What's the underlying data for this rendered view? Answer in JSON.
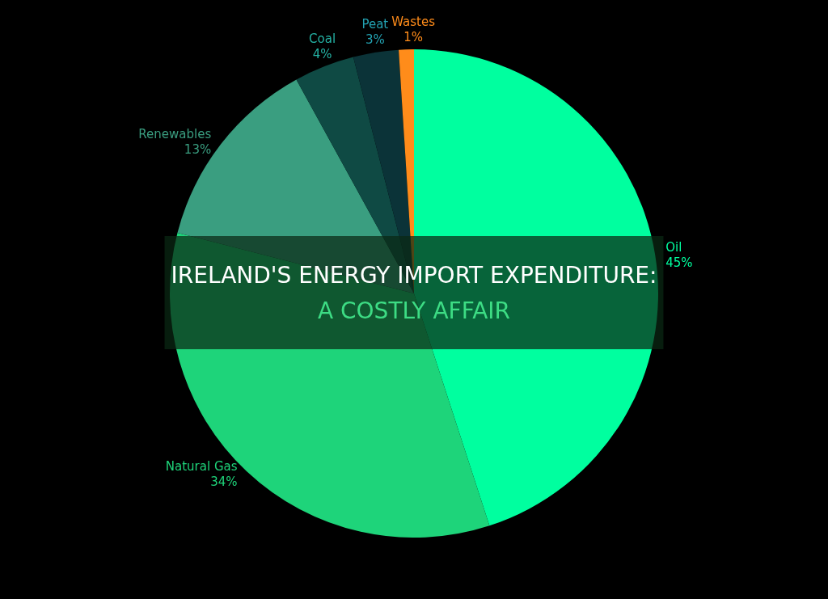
{
  "chart_data": {
    "type": "pie",
    "title": "IRELAND'S ENERGY IMPORT EXPENDITURE:",
    "subtitle": "A COSTLY AFFAIR",
    "categories": [
      "Oil",
      "Natural Gas",
      "Renewables",
      "Coal",
      "Peat",
      "Wastes"
    ],
    "values": [
      45,
      34,
      13,
      4,
      3,
      1
    ],
    "value_labels": [
      "45%",
      "34%",
      "13%",
      "4%",
      "3%",
      "1%"
    ],
    "colors": [
      "#00ff9f",
      "#1ed47a",
      "#3a9e80",
      "#0f4a44",
      "#0b3338",
      "#ff8c1a"
    ],
    "legend": false
  }
}
